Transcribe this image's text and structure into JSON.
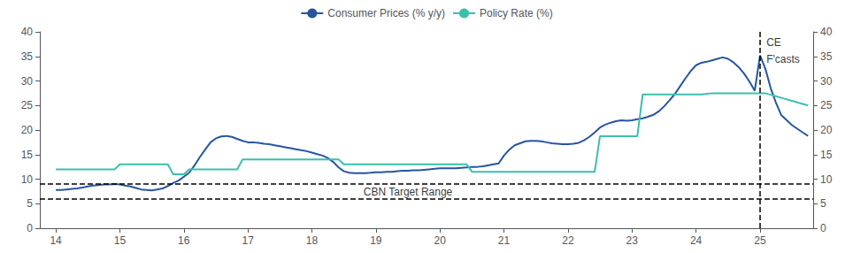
{
  "chart_data": {
    "type": "line",
    "series": [
      {
        "name": "Consumer Prices (% y/y)",
        "color": "#2755a0",
        "x": [
          14.0,
          14.083,
          14.167,
          14.25,
          14.333,
          14.417,
          14.5,
          14.583,
          14.667,
          14.75,
          14.833,
          14.917,
          15.0,
          15.083,
          15.167,
          15.25,
          15.333,
          15.417,
          15.5,
          15.583,
          15.667,
          15.75,
          15.833,
          15.917,
          16.0,
          16.083,
          16.167,
          16.25,
          16.333,
          16.417,
          16.5,
          16.583,
          16.667,
          16.75,
          16.833,
          16.917,
          17.0,
          17.083,
          17.167,
          17.25,
          17.333,
          17.417,
          17.5,
          17.583,
          17.667,
          17.75,
          17.833,
          17.917,
          18.0,
          18.083,
          18.167,
          18.25,
          18.333,
          18.417,
          18.5,
          18.583,
          18.667,
          18.75,
          18.833,
          18.917,
          19.0,
          19.083,
          19.167,
          19.25,
          19.333,
          19.417,
          19.5,
          19.583,
          19.667,
          19.75,
          19.833,
          19.917,
          20.0,
          20.083,
          20.167,
          20.25,
          20.333,
          20.417,
          20.5,
          20.583,
          20.667,
          20.75,
          20.833,
          20.917,
          21.0,
          21.083,
          21.167,
          21.25,
          21.333,
          21.417,
          21.5,
          21.583,
          21.667,
          21.75,
          21.833,
          21.917,
          22.0,
          22.083,
          22.167,
          22.25,
          22.333,
          22.417,
          22.5,
          22.583,
          22.667,
          22.75,
          22.833,
          22.917,
          23.0,
          23.083,
          23.167,
          23.25,
          23.333,
          23.417,
          23.5,
          23.583,
          23.667,
          23.75,
          23.833,
          23.917,
          24.0,
          24.083,
          24.167,
          24.25,
          24.333,
          24.417,
          24.5,
          24.583,
          24.667,
          24.75,
          24.833,
          24.917,
          25.0,
          25.083,
          25.167,
          25.25,
          25.333,
          25.5,
          25.667,
          25.75
        ],
        "values": [
          7.8,
          7.8,
          7.9,
          8.0,
          8.1,
          8.3,
          8.5,
          8.7,
          8.8,
          8.9,
          8.9,
          9.0,
          8.9,
          8.7,
          8.5,
          8.2,
          7.9,
          7.8,
          7.7,
          7.9,
          8.1,
          8.6,
          9.2,
          9.7,
          10.5,
          11.3,
          12.8,
          14.5,
          16.0,
          17.5,
          18.3,
          18.7,
          18.8,
          18.6,
          18.2,
          17.8,
          17.5,
          17.5,
          17.4,
          17.2,
          17.1,
          16.9,
          16.7,
          16.5,
          16.3,
          16.1,
          15.9,
          15.7,
          15.4,
          15.1,
          14.8,
          14.3,
          13.5,
          12.4,
          11.6,
          11.3,
          11.2,
          11.2,
          11.2,
          11.3,
          11.4,
          11.4,
          11.5,
          11.5,
          11.6,
          11.7,
          11.7,
          11.8,
          11.8,
          11.9,
          12.0,
          12.1,
          12.2,
          12.2,
          12.2,
          12.2,
          12.3,
          12.4,
          12.5,
          12.5,
          12.6,
          12.8,
          13.0,
          13.2,
          14.8,
          16.0,
          16.9,
          17.3,
          17.7,
          17.8,
          17.8,
          17.7,
          17.5,
          17.3,
          17.2,
          17.1,
          17.1,
          17.2,
          17.4,
          17.9,
          18.6,
          19.5,
          20.5,
          21.1,
          21.5,
          21.8,
          22.0,
          21.9,
          22.0,
          22.2,
          22.4,
          22.7,
          23.1,
          23.8,
          24.8,
          26.0,
          27.3,
          28.9,
          30.5,
          32.0,
          33.2,
          33.7,
          33.9,
          34.2,
          34.5,
          34.8,
          34.5,
          33.8,
          32.8,
          31.5,
          29.9,
          28.0,
          35.2,
          32.5,
          28.5,
          25.5,
          23.0,
          21.0,
          19.5,
          18.8
        ]
      },
      {
        "name": "Policy Rate (%)",
        "color": "#3bbfad",
        "x": [
          14.0,
          14.917,
          15.0,
          15.75,
          15.833,
          16.0,
          16.083,
          16.833,
          16.917,
          18.417,
          18.5,
          20.417,
          20.5,
          22.417,
          22.5,
          23.083,
          23.167,
          24.0,
          24.083,
          24.25,
          24.333,
          24.5,
          24.583,
          24.75,
          24.833,
          25.0,
          25.083,
          25.75
        ],
        "values": [
          12.0,
          12.0,
          13.0,
          13.0,
          11.0,
          11.0,
          12.0,
          12.0,
          14.0,
          14.0,
          13.0,
          13.0,
          11.5,
          11.5,
          18.75,
          18.75,
          27.25,
          27.25,
          27.25,
          27.5,
          27.5,
          27.5,
          27.5,
          27.5,
          27.5,
          27.5,
          27.5,
          25.0
        ]
      }
    ],
    "reference_lines": [
      {
        "axis": "y",
        "value": 6,
        "line_style": "dashed",
        "color": "#000000"
      },
      {
        "axis": "y",
        "value": 9,
        "line_style": "dashed",
        "color": "#000000"
      },
      {
        "axis": "x",
        "value": 25.0,
        "line_style": "dashed",
        "color": "#000000"
      }
    ],
    "annotations": [
      {
        "text": "CBN Target Range",
        "x": 19.5,
        "y": 7.4,
        "color": "#000000"
      },
      {
        "text": "CE",
        "x": 25.1,
        "y": 39.0,
        "color": "#000000"
      },
      {
        "text": "F'casts",
        "x": 25.1,
        "y": 35.5,
        "color": "#000000"
      }
    ],
    "xlim": [
      13.75,
      25.83
    ],
    "xticks": [
      14,
      15,
      16,
      17,
      18,
      19,
      20,
      21,
      22,
      23,
      24,
      25
    ],
    "ylim": [
      0,
      40
    ],
    "yticks": [
      0,
      5,
      10,
      15,
      20,
      25,
      30,
      35,
      40
    ],
    "y2lim": [
      0,
      40
    ],
    "y2ticks": [
      0,
      5,
      10,
      15,
      20,
      25,
      30,
      35,
      40
    ],
    "grid": false,
    "legend": "top"
  }
}
